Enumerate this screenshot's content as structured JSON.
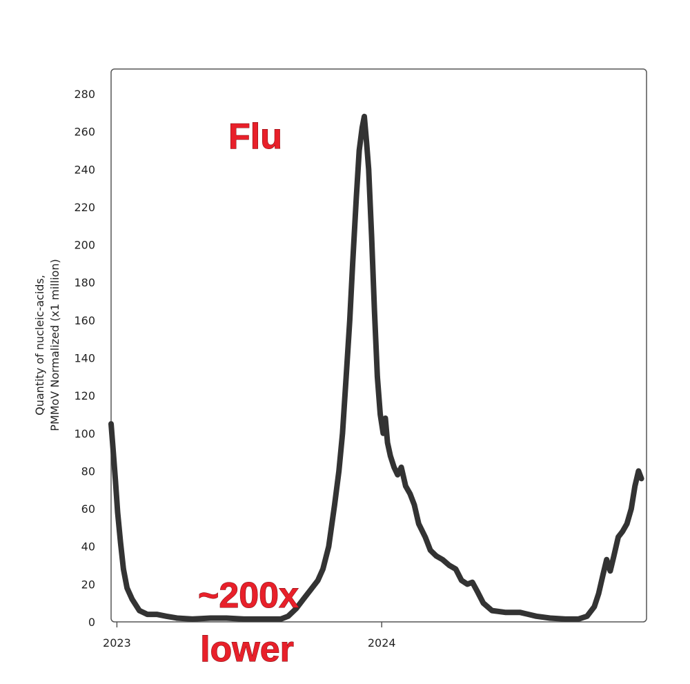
{
  "chart_data": {
    "type": "line",
    "title": "",
    "xlabel": "",
    "ylabel_lines": [
      "Quantity of nucleic-acids,",
      "PMMoV Normalized (x1 million)"
    ],
    "ylim": [
      0,
      280
    ],
    "yticks": [
      0,
      20,
      40,
      60,
      80,
      100,
      120,
      140,
      160,
      180,
      200,
      220,
      240,
      260,
      280
    ],
    "xlim": [
      "2022-12-24",
      "2024-12-31"
    ],
    "xticks": [
      {
        "label": "2023",
        "date": "2023-01-01"
      },
      {
        "label": "2024",
        "date": "2024-01-01"
      }
    ],
    "grid": false,
    "legend": "none",
    "series": [
      {
        "color": "#333333",
        "points": [
          [
            "2022-12-24",
            105
          ],
          [
            "2022-12-27",
            90
          ],
          [
            "2022-12-30",
            75
          ],
          [
            "2023-01-02",
            58
          ],
          [
            "2023-01-06",
            42
          ],
          [
            "2023-01-10",
            28
          ],
          [
            "2023-01-15",
            18
          ],
          [
            "2023-01-22",
            12
          ],
          [
            "2023-02-01",
            6
          ],
          [
            "2023-02-12",
            4
          ],
          [
            "2023-02-25",
            4
          ],
          [
            "2023-03-10",
            3
          ],
          [
            "2023-03-25",
            2
          ],
          [
            "2023-04-15",
            1.5
          ],
          [
            "2023-05-10",
            2
          ],
          [
            "2023-06-01",
            2
          ],
          [
            "2023-06-25",
            1.5
          ],
          [
            "2023-07-15",
            1.5
          ],
          [
            "2023-08-01",
            1.5
          ],
          [
            "2023-08-15",
            1.5
          ],
          [
            "2023-08-25",
            3
          ],
          [
            "2023-09-05",
            7
          ],
          [
            "2023-09-15",
            12
          ],
          [
            "2023-09-25",
            17
          ],
          [
            "2023-10-05",
            22
          ],
          [
            "2023-10-12",
            28
          ],
          [
            "2023-10-20",
            40
          ],
          [
            "2023-10-28",
            62
          ],
          [
            "2023-11-03",
            80
          ],
          [
            "2023-11-08",
            100
          ],
          [
            "2023-11-13",
            130
          ],
          [
            "2023-11-18",
            160
          ],
          [
            "2023-11-22",
            190
          ],
          [
            "2023-11-27",
            225
          ],
          [
            "2023-12-01",
            250
          ],
          [
            "2023-12-05",
            262
          ],
          [
            "2023-12-08",
            268
          ],
          [
            "2023-12-11",
            255
          ],
          [
            "2023-12-14",
            240
          ],
          [
            "2023-12-18",
            205
          ],
          [
            "2023-12-22",
            165
          ],
          [
            "2023-12-26",
            130
          ],
          [
            "2023-12-30",
            110
          ],
          [
            "2024-01-03",
            100
          ],
          [
            "2024-01-06",
            108
          ],
          [
            "2024-01-09",
            95
          ],
          [
            "2024-01-13",
            88
          ],
          [
            "2024-01-18",
            82
          ],
          [
            "2024-01-23",
            78
          ],
          [
            "2024-01-28",
            82
          ],
          [
            "2024-02-03",
            72
          ],
          [
            "2024-02-09",
            68
          ],
          [
            "2024-02-15",
            62
          ],
          [
            "2024-02-21",
            52
          ],
          [
            "2024-03-01",
            45
          ],
          [
            "2024-03-08",
            38
          ],
          [
            "2024-03-16",
            35
          ],
          [
            "2024-03-25",
            33
          ],
          [
            "2024-04-03",
            30
          ],
          [
            "2024-04-12",
            28
          ],
          [
            "2024-04-20",
            22
          ],
          [
            "2024-04-28",
            20
          ],
          [
            "2024-05-05",
            21
          ],
          [
            "2024-05-12",
            16
          ],
          [
            "2024-05-20",
            10
          ],
          [
            "2024-06-01",
            6
          ],
          [
            "2024-06-20",
            5
          ],
          [
            "2024-07-10",
            5
          ],
          [
            "2024-08-01",
            3
          ],
          [
            "2024-08-20",
            2
          ],
          [
            "2024-09-10",
            1.5
          ],
          [
            "2024-09-28",
            1.5
          ],
          [
            "2024-10-10",
            3
          ],
          [
            "2024-10-20",
            8
          ],
          [
            "2024-10-26",
            15
          ],
          [
            "2024-11-01",
            25
          ],
          [
            "2024-11-06",
            33
          ],
          [
            "2024-11-11",
            27
          ],
          [
            "2024-11-16",
            35
          ],
          [
            "2024-11-22",
            45
          ],
          [
            "2024-11-28",
            48
          ],
          [
            "2024-12-04",
            52
          ],
          [
            "2024-12-10",
            60
          ],
          [
            "2024-12-15",
            72
          ],
          [
            "2024-12-20",
            80
          ],
          [
            "2024-12-24",
            76
          ]
        ]
      }
    ],
    "annotations": [
      {
        "text": "Flu",
        "size": "large"
      },
      {
        "text": "~200x",
        "size": "large"
      },
      {
        "text": "lower",
        "size": "large"
      }
    ]
  }
}
